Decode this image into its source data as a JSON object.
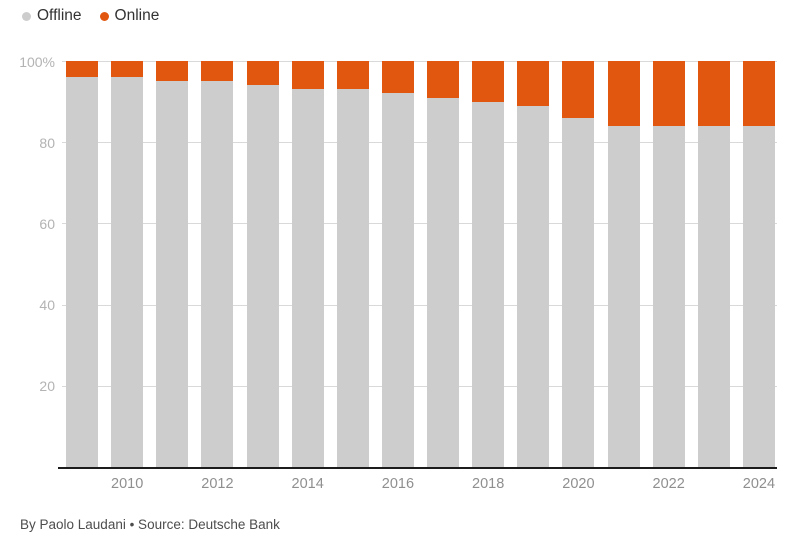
{
  "legend": {
    "items": [
      {
        "label": "Offline",
        "color": "#cdcdcd"
      },
      {
        "label": "Online",
        "color": "#e2570f"
      }
    ]
  },
  "footer": {
    "text": "By Paolo Laudani • Source: Deutsche Bank"
  },
  "chart_data": {
    "type": "bar",
    "stacked": true,
    "title": "",
    "categories": [
      "2009",
      "2010",
      "2011",
      "2012",
      "2013",
      "2014",
      "2015",
      "2016",
      "2017",
      "2018",
      "2019",
      "2020",
      "2021",
      "2022",
      "2023",
      "2024"
    ],
    "series": [
      {
        "name": "Offline",
        "color": "#cdcdcd",
        "values": [
          96,
          96,
          95,
          95,
          94,
          93,
          93,
          92,
          91,
          90,
          89,
          86,
          84,
          84,
          84,
          84
        ]
      },
      {
        "name": "Online",
        "color": "#e2570f",
        "values": [
          4,
          4,
          5,
          5,
          6,
          7,
          7,
          8,
          9,
          10,
          11,
          14,
          16,
          16,
          16,
          16
        ]
      }
    ],
    "ylim": [
      0,
      100
    ],
    "yticks": [
      {
        "value": 100,
        "label": "100%"
      },
      {
        "value": 80,
        "label": "80"
      },
      {
        "value": 60,
        "label": "60"
      },
      {
        "value": 40,
        "label": "40"
      },
      {
        "value": 20,
        "label": "20"
      }
    ],
    "xtick_labels": [
      "",
      "2010",
      "",
      "2012",
      "",
      "2014",
      "",
      "2016",
      "",
      "2018",
      "",
      "2020",
      "",
      "2022",
      "",
      "2024"
    ],
    "grid": true,
    "legend_position": "top-left"
  }
}
